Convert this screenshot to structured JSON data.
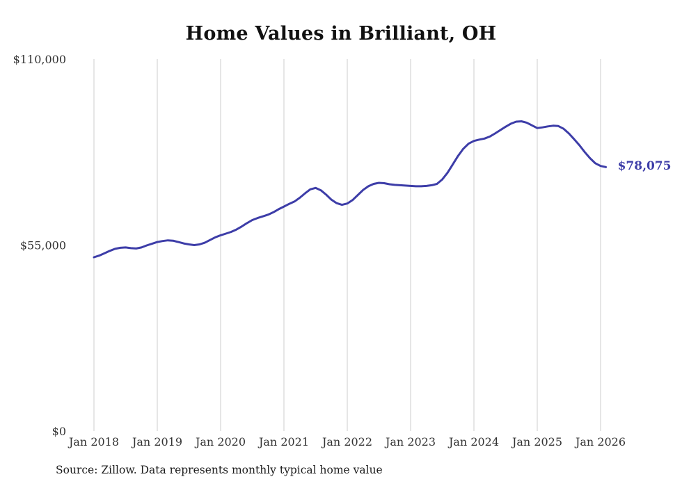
{
  "chart_data": {
    "type": "line",
    "title": "Home Values in Brilliant, OH",
    "source": "Source: Zillow. Data represents monthly typical home value",
    "end_label": "$78,075",
    "latest_value": 78075,
    "line_color": "#3d3da8",
    "grid_color": "#cccccc",
    "text_color": "#333333",
    "grid": "vertical-only",
    "legend_position": "none",
    "ylabel": "",
    "xlabel": "",
    "ylim": [
      0,
      110000
    ],
    "yticks": [
      {
        "value": 0,
        "label": "$0"
      },
      {
        "value": 55000,
        "label": "$55,000"
      },
      {
        "value": 110000,
        "label": "$110,000"
      }
    ],
    "xticks": [
      {
        "month_index": 0,
        "label": "Jan 2018"
      },
      {
        "month_index": 12,
        "label": "Jan 2019"
      },
      {
        "month_index": 24,
        "label": "Jan 2020"
      },
      {
        "month_index": 36,
        "label": "Jan 2021"
      },
      {
        "month_index": 48,
        "label": "Jan 2022"
      },
      {
        "month_index": 60,
        "label": "Jan 2023"
      },
      {
        "month_index": 72,
        "label": "Jan 2024"
      },
      {
        "month_index": 84,
        "label": "Jan 2025"
      },
      {
        "month_index": 96,
        "label": "Jan 2026"
      }
    ],
    "series": [
      {
        "name": "Monthly typical home value",
        "start": "Jan 2018",
        "interval": "monthly",
        "values": [
          51400,
          51900,
          52600,
          53300,
          53900,
          54200,
          54300,
          54100,
          54000,
          54300,
          54900,
          55400,
          55900,
          56200,
          56400,
          56300,
          55900,
          55500,
          55200,
          55000,
          55200,
          55700,
          56500,
          57300,
          57900,
          58400,
          58900,
          59600,
          60500,
          61500,
          62400,
          63000,
          63500,
          64000,
          64700,
          65600,
          66400,
          67200,
          67900,
          69000,
          70300,
          71500,
          71900,
          71200,
          69900,
          68400,
          67400,
          66900,
          67300,
          68300,
          69800,
          71300,
          72400,
          73100,
          73400,
          73300,
          73000,
          72800,
          72700,
          72600,
          72500,
          72400,
          72400,
          72500,
          72700,
          73100,
          74400,
          76400,
          78900,
          81400,
          83500,
          85000,
          85800,
          86200,
          86500,
          87100,
          88000,
          89000,
          90000,
          90900,
          91500,
          91600,
          91200,
          90400,
          89600,
          89800,
          90100,
          90300,
          90200,
          89400,
          88000,
          86300,
          84500,
          82500,
          80700,
          79200,
          78400,
          78075
        ]
      }
    ]
  }
}
